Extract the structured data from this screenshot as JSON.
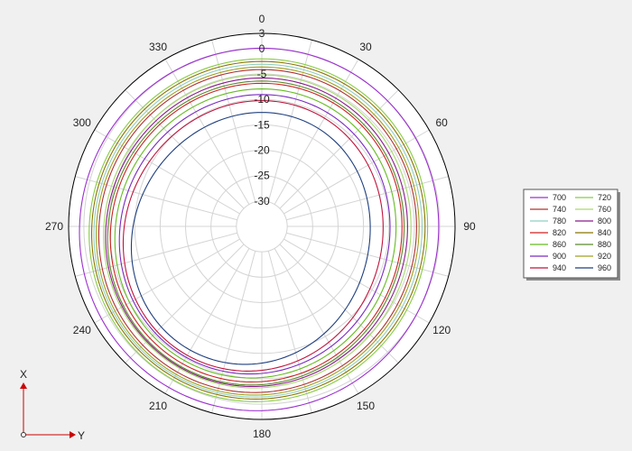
{
  "chart_data": {
    "type": "polar-line",
    "radial_axis": {
      "min": -35,
      "max": 3,
      "ticks": [
        3,
        0,
        -5,
        -10,
        -15,
        -20,
        -25,
        -30
      ],
      "tick_labels": [
        "3",
        "0",
        "-5",
        "-10",
        "-15",
        "-20",
        "-25",
        "-30"
      ]
    },
    "angular_axis": {
      "direction": "clockwise",
      "zero_at": "top",
      "ticks": [
        0,
        30,
        60,
        90,
        120,
        150,
        180,
        210,
        240,
        270,
        300,
        330
      ],
      "tick_labels": [
        "0",
        "30",
        "60",
        "90",
        "120",
        "150",
        "180",
        "210",
        "240",
        "270",
        "300",
        "330"
      ],
      "grid_step_deg": 15
    },
    "grid": true,
    "legend": {
      "position": "right",
      "columns": 2
    },
    "series": [
      {
        "name": "700",
        "color": "#9b30d0",
        "level": 0.5,
        "spiral": 0.8
      },
      {
        "name": "720",
        "color": "#88cc44",
        "level": -1.5,
        "spiral": 1.0
      },
      {
        "name": "740",
        "color": "#b03030",
        "level": -3.5,
        "spiral": 1.2
      },
      {
        "name": "760",
        "color": "#a6d96a",
        "level": -4.5,
        "spiral": 1.3
      },
      {
        "name": "780",
        "color": "#8fd0c0",
        "level": -2.5,
        "spiral": 1.1
      },
      {
        "name": "800",
        "color": "#8b1a8b",
        "level": -5.0,
        "spiral": 1.5
      },
      {
        "name": "820",
        "color": "#cc2222",
        "level": -6.0,
        "spiral": 1.6
      },
      {
        "name": "840",
        "color": "#8b7500",
        "level": -2.0,
        "spiral": 1.0
      },
      {
        "name": "860",
        "color": "#66bb22",
        "level": -7.0,
        "spiral": 1.8
      },
      {
        "name": "880",
        "color": "#5a8a2a",
        "level": -5.5,
        "spiral": 1.7
      },
      {
        "name": "900",
        "color": "#7a2ac0",
        "level": -8.0,
        "spiral": 2.0
      },
      {
        "name": "920",
        "color": "#a0a020",
        "level": -3.0,
        "spiral": 1.2
      },
      {
        "name": "940",
        "color": "#c0143c",
        "level": -9.0,
        "spiral": 2.4
      },
      {
        "name": "960",
        "color": "#1f3f7f",
        "level": -11.0,
        "spiral": 3.0
      }
    ]
  },
  "axis_indicator": {
    "x_label": "X",
    "y_label": "Y"
  }
}
